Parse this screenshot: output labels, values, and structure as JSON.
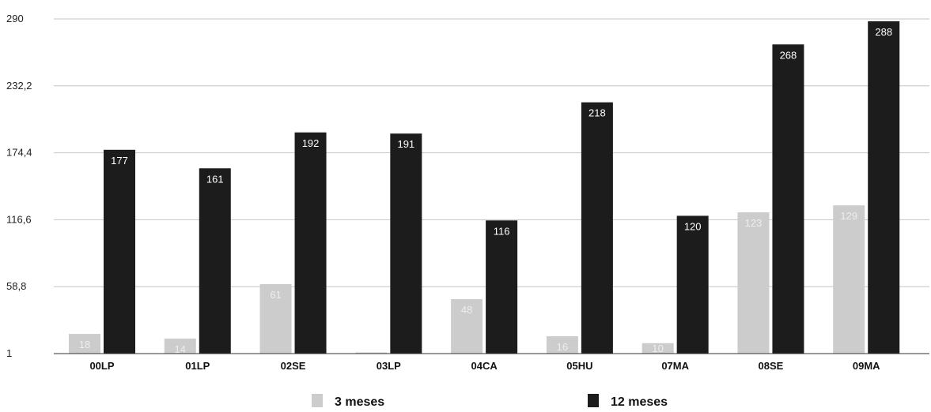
{
  "chart_data": {
    "type": "bar",
    "title": "",
    "xlabel": "",
    "ylabel": "",
    "categories": [
      "00LP",
      "01LP",
      "02SE",
      "03LP",
      "04CA",
      "05HU",
      "07MA",
      "08SE",
      "09MA"
    ],
    "series": [
      {
        "name": "3 meses",
        "color": "#cccccc",
        "label_color": "#eeeeee",
        "values": [
          18,
          14,
          61,
          2,
          48,
          16,
          10,
          123,
          129
        ],
        "labels": [
          "18",
          "14",
          "61",
          "",
          "48",
          "16",
          "10",
          "123",
          "129"
        ]
      },
      {
        "name": "12 meses",
        "color": "#1c1c1c",
        "label_color": "#ffffff",
        "values": [
          177,
          161,
          192,
          191,
          116,
          218,
          120,
          268,
          288
        ],
        "labels": [
          "177",
          "161",
          "192",
          "191",
          "116",
          "218",
          "120",
          "268",
          "288"
        ]
      }
    ],
    "ylim": [
      1,
      290
    ],
    "yticks": [
      1,
      58.8,
      116.6,
      174.4,
      232.2,
      290
    ],
    "ytick_labels": [
      "1",
      "58,8",
      "116,6",
      "174,4",
      "232,2",
      "290"
    ],
    "grid": true,
    "legend_position": "bottom"
  }
}
